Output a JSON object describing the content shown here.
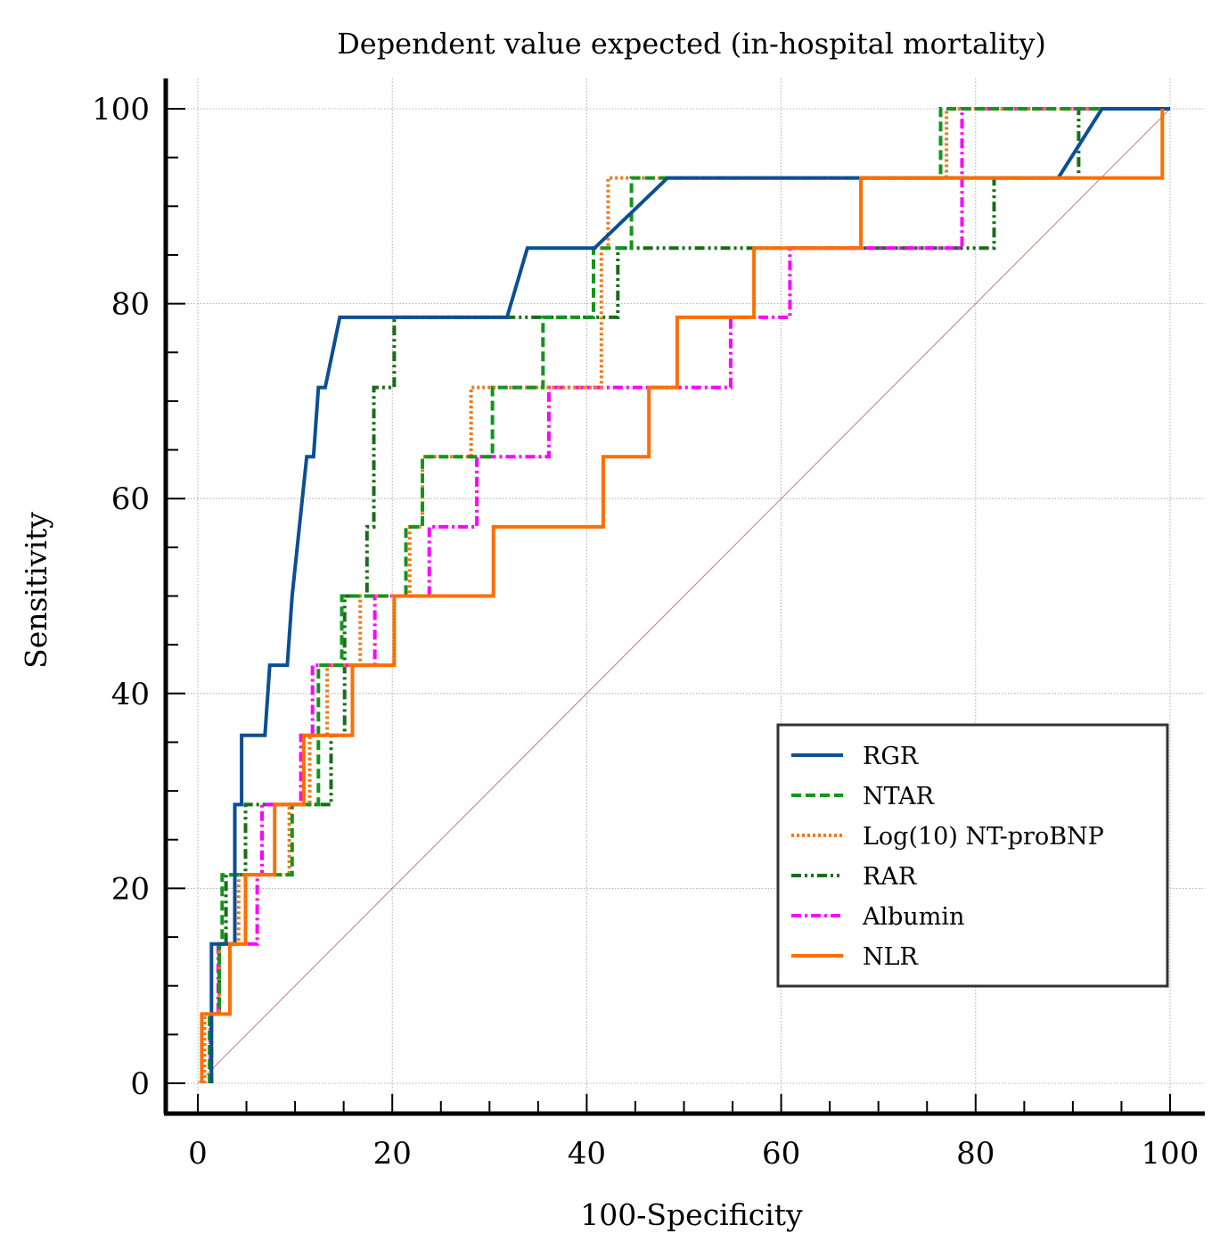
{
  "chart_data": {
    "type": "line",
    "title": "Dependent value expected (in-hospital mortality)",
    "xlabel": "100-Specificity",
    "ylabel": "Sensitivity",
    "xlim": [
      0,
      100
    ],
    "ylim": [
      0,
      100
    ],
    "x_ticks": [
      "0",
      "20",
      "40",
      "60",
      "80",
      "100"
    ],
    "y_ticks": [
      "0",
      "20",
      "40",
      "60",
      "80",
      "100"
    ],
    "grid": true,
    "legend_position": "bottom-right",
    "reference_line": {
      "name": "Reference",
      "x": [
        0,
        100
      ],
      "y": [
        0,
        100
      ],
      "color": "#c87a7a"
    },
    "series": [
      {
        "name": "RGR",
        "color": "#0b4f94",
        "dash": "solid",
        "width": 4,
        "x": [
          1.4,
          1.4,
          1.4,
          3.8,
          3.8,
          4.5,
          4.5,
          6.9,
          7.4,
          9.2,
          9.7,
          11.2,
          11.9,
          12.4,
          12.7,
          13.1,
          14.6,
          31.8,
          33.9,
          40.8,
          48.3,
          69,
          88.5,
          93,
          100
        ],
        "y": [
          0,
          7.1,
          14.3,
          14.3,
          28.6,
          28.6,
          35.7,
          35.7,
          42.9,
          42.9,
          50,
          64.3,
          64.3,
          71.4,
          71.4,
          71.4,
          78.6,
          78.6,
          85.7,
          85.7,
          92.9,
          92.9,
          92.9,
          100,
          100
        ]
      },
      {
        "name": "NTAR",
        "color": "#13951d",
        "dash": "dashed",
        "width": 4,
        "x": [
          1.2,
          1.2,
          2.2,
          2.2,
          2.5,
          2.5,
          9.7,
          9.7,
          12.4,
          12.4,
          14.8,
          14.8,
          21.4,
          21.4,
          23.1,
          23.1,
          30.3,
          30.3,
          35.5,
          35.5,
          40.7,
          40.7,
          44.6,
          44.6,
          76.4,
          76.4,
          100
        ],
        "y": [
          0,
          7.1,
          7.1,
          14.3,
          14.3,
          21.4,
          21.4,
          28.6,
          28.6,
          42.9,
          42.9,
          50,
          50,
          57.1,
          57.1,
          64.3,
          64.3,
          71.4,
          71.4,
          78.6,
          78.6,
          85.7,
          85.7,
          92.9,
          92.9,
          100,
          100
        ]
      },
      {
        "name": "Log(10) NT-proBNP",
        "color": "#f27a1a",
        "dash": "dotted",
        "width": 4,
        "x": [
          0.7,
          0.7,
          2.2,
          2.2,
          4.2,
          4.2,
          9.4,
          9.4,
          11.5,
          11.5,
          13.3,
          13.3,
          16.7,
          16.7,
          21.8,
          21.8,
          23.1,
          23.1,
          28.1,
          28.1,
          41.5,
          41.5,
          42.2,
          42.2,
          77,
          77,
          100
        ],
        "y": [
          0,
          7.1,
          7.1,
          14.3,
          14.3,
          21.4,
          21.4,
          28.6,
          28.6,
          35.7,
          35.7,
          42.9,
          42.9,
          50,
          50,
          57.1,
          57.1,
          64.3,
          64.3,
          71.4,
          71.4,
          85.7,
          85.7,
          92.9,
          92.9,
          100,
          100
        ]
      },
      {
        "name": "RAR",
        "color": "#176e17",
        "dash": "dashdotdot",
        "width": 4,
        "x": [
          1.4,
          1.4,
          2.2,
          2.2,
          2.9,
          2.9,
          4.9,
          4.9,
          13.7,
          13.7,
          15.1,
          15.1,
          17.4,
          17.4,
          18.1,
          18.1,
          20.2,
          20.2,
          43.2,
          43.2,
          80.4,
          80.4,
          81.9,
          81.9,
          90.6,
          90.6,
          100
        ],
        "y": [
          0,
          7.1,
          7.1,
          14.3,
          14.3,
          21.4,
          21.4,
          28.6,
          28.6,
          35.7,
          35.7,
          50,
          50,
          57.1,
          57.1,
          71.4,
          71.4,
          78.6,
          78.6,
          85.7,
          85.7,
          85.7,
          85.7,
          92.9,
          92.9,
          100,
          100
        ]
      },
      {
        "name": "Albumin",
        "color": "#ff00ff",
        "dash": "dashdot",
        "width": 4,
        "x": [
          1.3,
          1.3,
          2.1,
          2.1,
          6.1,
          6.1,
          6.6,
          6.6,
          10.6,
          10.6,
          11.8,
          11.8,
          18.2,
          18.2,
          23.8,
          23.8,
          28.7,
          28.7,
          36.1,
          36.1,
          54.8,
          54.8,
          60.9,
          60.9,
          78.6,
          78.6,
          100
        ],
        "y": [
          0,
          7.1,
          7.1,
          14.3,
          14.3,
          21.4,
          21.4,
          28.6,
          28.6,
          35.7,
          35.7,
          42.9,
          42.9,
          50,
          50,
          57.1,
          57.1,
          64.3,
          64.3,
          71.4,
          71.4,
          78.6,
          78.6,
          85.7,
          85.7,
          100,
          100
        ]
      },
      {
        "name": "NLR",
        "color": "#ff6e00",
        "dash": "solid",
        "width": 4,
        "x": [
          0.4,
          0.4,
          3.3,
          3.3,
          4.9,
          4.9,
          7.9,
          7.9,
          10.9,
          10.9,
          15.9,
          15.9,
          20.2,
          20.2,
          30.4,
          30.4,
          41.7,
          41.7,
          46.4,
          46.4,
          49.3,
          49.3,
          57.2,
          57.2,
          68.2,
          68.2,
          99.2,
          99.2
        ],
        "y": [
          0,
          7.1,
          7.1,
          14.3,
          14.3,
          21.4,
          21.4,
          28.6,
          28.6,
          35.7,
          35.7,
          42.9,
          42.9,
          50,
          50,
          57.1,
          57.1,
          64.3,
          64.3,
          71.4,
          71.4,
          78.6,
          78.6,
          85.7,
          85.7,
          92.9,
          92.9,
          100
        ]
      }
    ]
  }
}
